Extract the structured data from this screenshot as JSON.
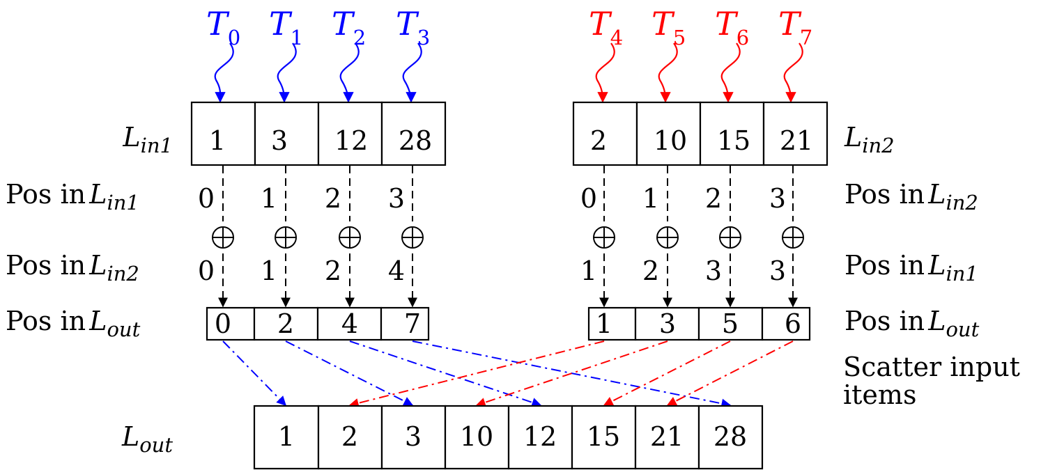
{
  "threads": {
    "group1": [
      "0",
      "1",
      "2",
      "3"
    ],
    "group2": [
      "4",
      "5",
      "6",
      "7"
    ],
    "symbol": "T",
    "color1": "#0000ff",
    "color2": "#ff0000"
  },
  "lists": {
    "in1": {
      "base": "L",
      "sub": "in1",
      "values": [
        "1",
        "3",
        "12",
        "28"
      ]
    },
    "in2": {
      "base": "L",
      "sub": "in2",
      "values": [
        "2",
        "10",
        "15",
        "21"
      ]
    },
    "out": {
      "base": "L",
      "sub": "out",
      "values": [
        "1",
        "2",
        "3",
        "10",
        "12",
        "15",
        "21",
        "28"
      ]
    }
  },
  "rows": {
    "pos_in_prefix": "Pos in",
    "left_pos_own": [
      "0",
      "1",
      "2",
      "3"
    ],
    "left_pos_other": [
      "0",
      "1",
      "2",
      "4"
    ],
    "left_pos_out": [
      "0",
      "2",
      "4",
      "7"
    ],
    "right_pos_own": [
      "0",
      "1",
      "2",
      "3"
    ],
    "right_pos_other": [
      "1",
      "2",
      "3",
      "3"
    ],
    "right_pos_out": [
      "1",
      "3",
      "5",
      "6"
    ]
  },
  "operator_symbol": "⊕",
  "scatter_label": [
    "Scatter input",
    "items"
  ]
}
